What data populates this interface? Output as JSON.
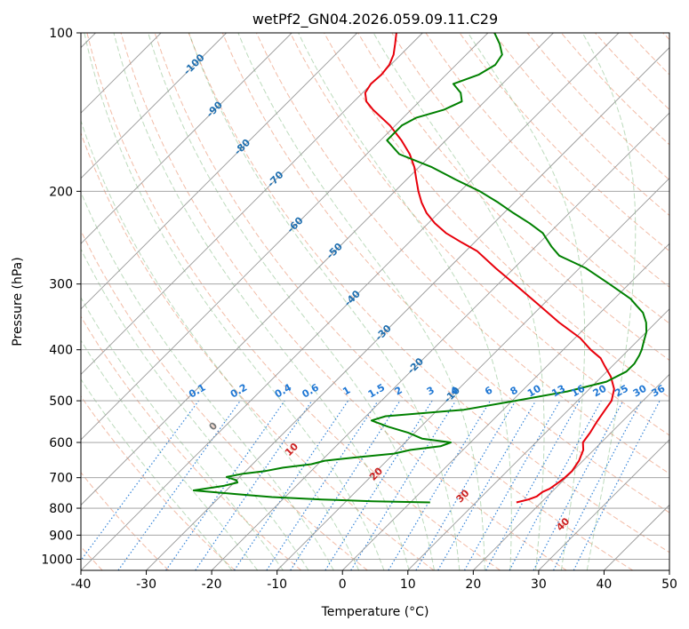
{
  "chart_data": {
    "type": "line",
    "title": "wetPf2_GN04.2026.059.09.11.C29",
    "xlabel": "Temperature (°C)",
    "ylabel": "Pressure (hPa)",
    "xlim": [
      -40,
      50
    ],
    "ylim": [
      1050,
      100
    ],
    "y_scale": "log",
    "grid": true,
    "x_ticks": [
      -40,
      -30,
      -20,
      -10,
      0,
      10,
      20,
      30,
      40,
      50
    ],
    "y_ticks": [
      100,
      200,
      300,
      400,
      500,
      600,
      700,
      800,
      900,
      1000
    ],
    "colors": {
      "temperature": "#e8000b",
      "dewpoint": "#008000",
      "dry_adiabat": "#e26a3c",
      "moist_adiabat": "#5aa55a",
      "mixing_ratio": "#1f77d4",
      "isotherm": "#999999",
      "isotherm_label": "#1f6fb0",
      "theta_label": "#cc2222",
      "zero_label": "#777777"
    },
    "series": [
      {
        "key": "temperature",
        "pressure": [
          780,
          770,
          760,
          745,
          735,
          715,
          700,
          680,
          650,
          620,
          600,
          575,
          550,
          525,
          500,
          475,
          450,
          430,
          415,
          400,
          380,
          355,
          330,
          300,
          280,
          260,
          250,
          240,
          230,
          220,
          210,
          200,
          190,
          180,
          170,
          160,
          150,
          140,
          135,
          130,
          125,
          120,
          115,
          110,
          105,
          100
        ],
        "temperature": [
          16.2,
          17.6,
          18.4,
          18.6,
          19.2,
          19.6,
          19.8,
          19.9,
          19.4,
          18.4,
          17.2,
          16.8,
          16.2,
          15.7,
          15.2,
          13.8,
          11.4,
          8.9,
          7.0,
          4.2,
          0.8,
          -4.8,
          -10.3,
          -17.5,
          -22.8,
          -28.2,
          -32.0,
          -35.8,
          -39.0,
          -41.8,
          -44.2,
          -46.4,
          -48.5,
          -50.7,
          -53.4,
          -56.8,
          -60.8,
          -65.8,
          -68.1,
          -69.6,
          -70.1,
          -69.9,
          -70.2,
          -71.1,
          -72.5,
          -74.0
        ]
      },
      {
        "key": "dewpoint",
        "pressure": [
          780,
          776,
          770,
          762,
          752,
          740,
          725,
          715,
          708,
          698,
          688,
          680,
          670,
          660,
          650,
          640,
          630,
          620,
          610,
          600,
          590,
          575,
          560,
          545,
          535,
          520,
          500,
          480,
          460,
          440,
          425,
          410,
          400,
          385,
          370,
          355,
          340,
          330,
          320,
          300,
          280,
          265,
          255,
          240,
          230,
          220,
          210,
          200,
          190,
          180,
          170,
          160,
          150,
          145,
          140,
          135,
          130,
          125,
          120,
          115,
          110,
          105,
          100
        ],
        "temperature": [
          3.0,
          -6.0,
          -14.0,
          -22.0,
          -28.0,
          -35.0,
          -31.0,
          -29.5,
          -30.0,
          -32.0,
          -30.0,
          -27.0,
          -24.8,
          -21.0,
          -19.5,
          -15.0,
          -10.0,
          -8.0,
          -4.0,
          -3.0,
          -8.0,
          -11.0,
          -15.0,
          -18.5,
          -17.0,
          -6.0,
          0.5,
          7.0,
          11.5,
          13.0,
          13.0,
          12.5,
          12.0,
          11.0,
          10.0,
          8.5,
          6.5,
          4.5,
          2.5,
          -3.0,
          -9.0,
          -15.0,
          -17.5,
          -21.0,
          -24.5,
          -28.5,
          -32.5,
          -37.0,
          -42.5,
          -48.0,
          -55.0,
          -59.0,
          -59.0,
          -58.0,
          -55.0,
          -53.5,
          -55.0,
          -57.5,
          -55.0,
          -54.0,
          -54.5,
          -56.5,
          -59.0
        ]
      }
    ],
    "isotherm_labels": [
      "-100",
      "-90",
      "-80",
      "-70",
      "-60",
      "-50",
      "-40",
      "-30",
      "-20",
      "-10"
    ],
    "mixing_ratio_labels": [
      "0.1",
      "0.2",
      "0.4",
      "0.6",
      "1",
      "1.5",
      "2",
      "3",
      "4",
      "6",
      "8",
      "10",
      "13",
      "16",
      "20",
      "25",
      "30",
      "36"
    ],
    "theta_labels": [
      "0",
      "10",
      "20",
      "30",
      "40"
    ]
  }
}
